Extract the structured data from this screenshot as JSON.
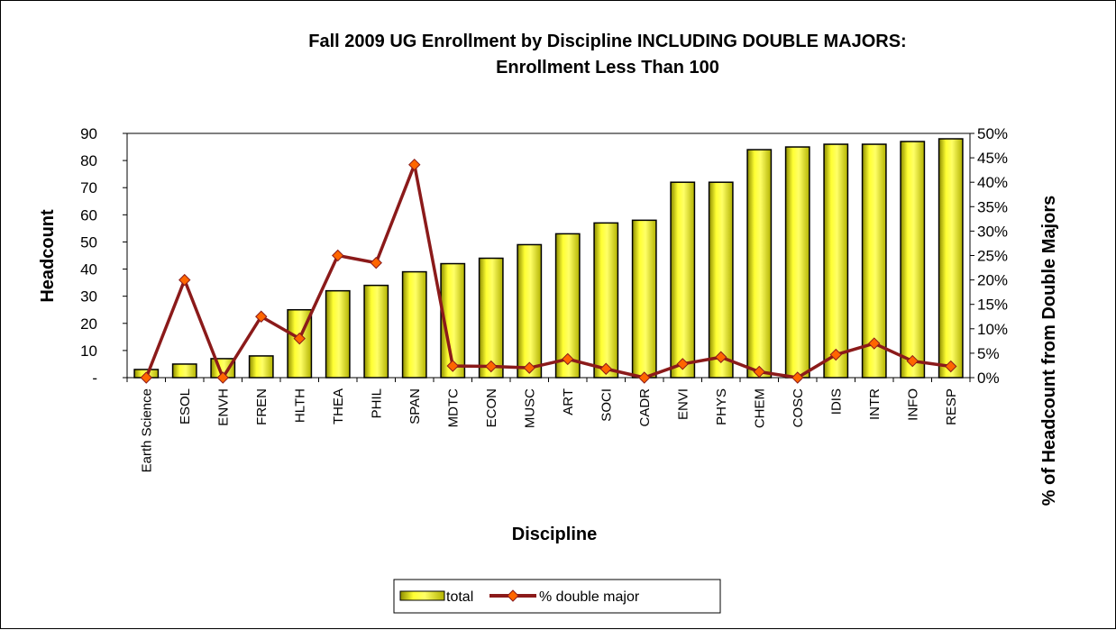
{
  "chart_data": {
    "type": "bar",
    "title_line1": "Fall 2009 UG Enrollment by Discipline INCLUDING DOUBLE MAJORS:",
    "title_line2": "Enrollment Less Than 100",
    "xlabel": "Discipline",
    "ylabel": "Headcount",
    "y2label": "% of Headcount from Double Majors",
    "ylim": [
      0,
      90
    ],
    "y2lim": [
      0,
      50
    ],
    "y_ticks": [
      "-",
      "10",
      "20",
      "30",
      "40",
      "50",
      "60",
      "70",
      "80",
      "90"
    ],
    "y2_ticks": [
      "0%",
      "5%",
      "10%",
      "15%",
      "20%",
      "25%",
      "30%",
      "35%",
      "40%",
      "45%",
      "50%"
    ],
    "grid": false,
    "legend_position": "bottom",
    "categories": [
      "Earth Science",
      "ESOL",
      "ENVH",
      "FREN",
      "HLTH",
      "THEA",
      "PHIL",
      "SPAN",
      "MDTC",
      "ECON",
      "MUSC",
      "ART",
      "SOCI",
      "CADR",
      "ENVI",
      "PHYS",
      "CHEM",
      "COSC",
      "IDIS",
      "INTR",
      "INFO",
      "RESP"
    ],
    "series": [
      {
        "name": "total",
        "type": "bar",
        "axis": "left",
        "color": "#FFFF00",
        "values": [
          3,
          5,
          7,
          8,
          25,
          32,
          34,
          39,
          42,
          44,
          49,
          53,
          57,
          58,
          72,
          72,
          84,
          85,
          86,
          86,
          87,
          88
        ]
      },
      {
        "name": "% double major",
        "type": "line",
        "axis": "right",
        "unit": "%",
        "color": "#8B1A1A",
        "marker_color": "#FF6600",
        "values": [
          0,
          20,
          0,
          12.5,
          8,
          25,
          23.5,
          43.6,
          2.4,
          2.3,
          2,
          3.8,
          1.8,
          0,
          2.8,
          4.2,
          1.2,
          0,
          4.7,
          7,
          3.4,
          2.3
        ]
      }
    ]
  }
}
